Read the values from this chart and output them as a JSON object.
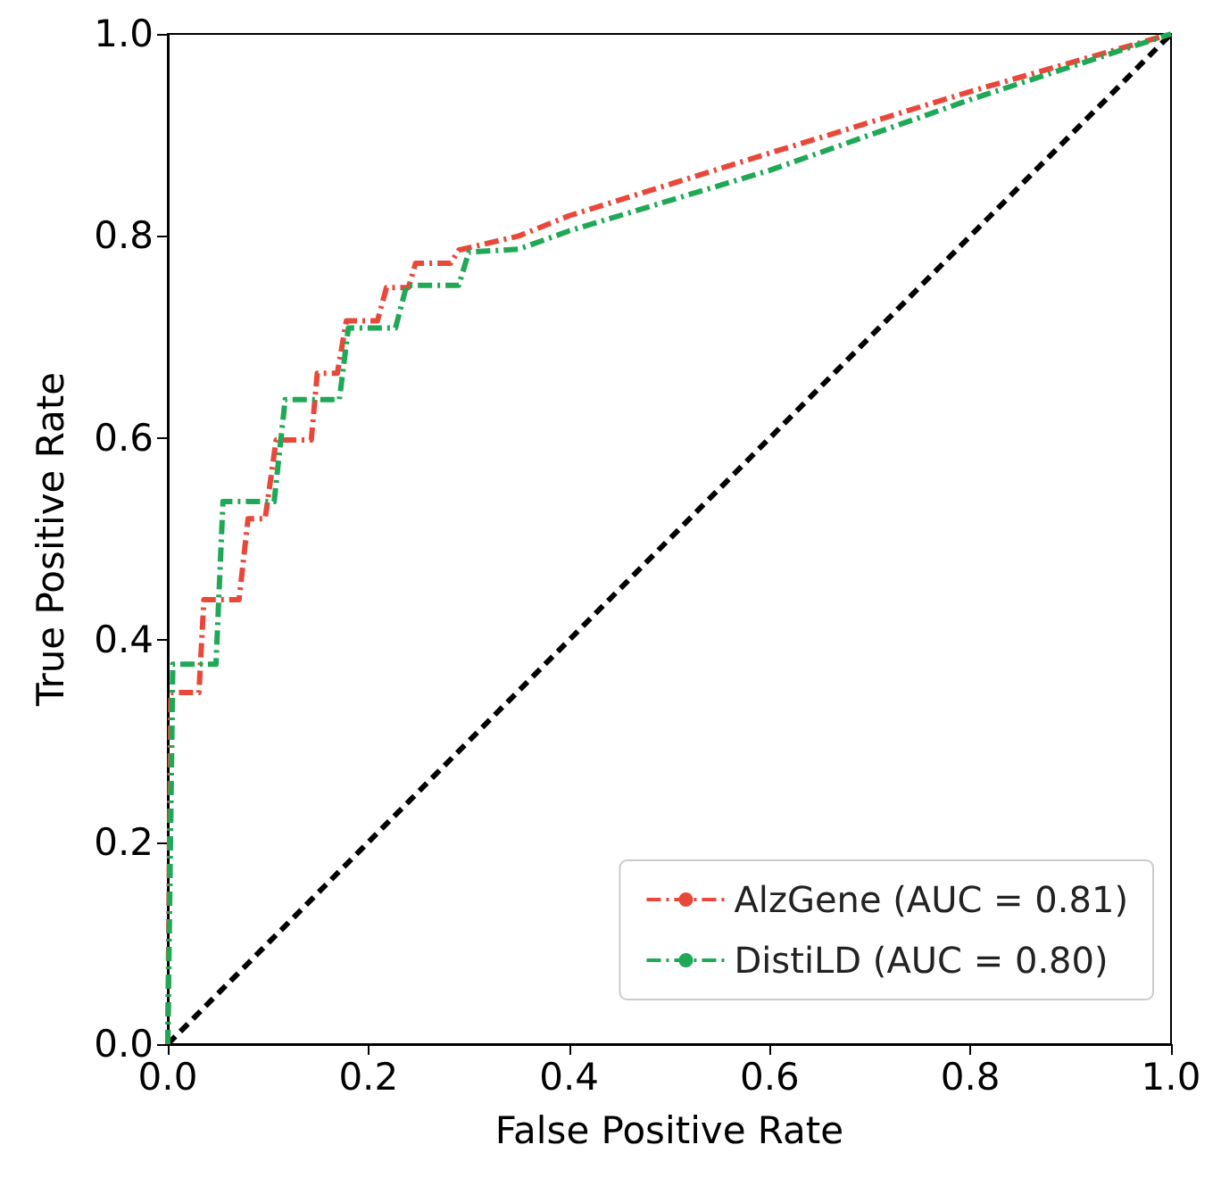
{
  "chart_data": {
    "type": "line",
    "xlabel": "False Positive Rate",
    "ylabel": "True Positive Rate",
    "xlim": [
      0,
      1
    ],
    "ylim": [
      0,
      1
    ],
    "xticks": [
      {
        "value": 0,
        "label": "0.0"
      },
      {
        "value": 0.2,
        "label": "0.2"
      },
      {
        "value": 0.4,
        "label": "0.4"
      },
      {
        "value": 0.6,
        "label": "0.6"
      },
      {
        "value": 0.8,
        "label": "0.8"
      },
      {
        "value": 1,
        "label": "1.0"
      }
    ],
    "yticks": [
      {
        "value": 0,
        "label": "0.0"
      },
      {
        "value": 0.2,
        "label": "0.2"
      },
      {
        "value": 0.4,
        "label": "0.4"
      },
      {
        "value": 0.6,
        "label": "0.6"
      },
      {
        "value": 0.8,
        "label": "0.8"
      },
      {
        "value": 1,
        "label": "1.0"
      }
    ],
    "grid": false,
    "legend": "bottom right",
    "marker": "none",
    "series": [
      {
        "name": "AlzGene (AUC = 0.81)",
        "color": "#e8483a",
        "line_style": "dashdot",
        "x": [
          0,
          0.003,
          0.031,
          0.036,
          0.071,
          0.08,
          0.097,
          0.108,
          0.143,
          0.149,
          0.169,
          0.178,
          0.209,
          0.218,
          0.24,
          0.247,
          0.282,
          0.29,
          0.35,
          0.4,
          0.6,
          0.8,
          1
        ],
        "values": [
          0,
          0.348,
          0.348,
          0.44,
          0.44,
          0.52,
          0.52,
          0.598,
          0.598,
          0.664,
          0.664,
          0.716,
          0.716,
          0.749,
          0.749,
          0.773,
          0.773,
          0.786,
          0.8,
          0.82,
          0.882,
          0.943,
          1
        ]
      },
      {
        "name": "DistiLD (AUC = 0.80)",
        "color": "#1fa855",
        "line_style": "dashdot",
        "x": [
          0,
          0.005,
          0.048,
          0.055,
          0.106,
          0.117,
          0.171,
          0.18,
          0.227,
          0.238,
          0.29,
          0.3,
          0.35,
          0.4,
          0.6,
          0.8,
          1
        ],
        "values": [
          0,
          0.376,
          0.376,
          0.537,
          0.537,
          0.638,
          0.638,
          0.709,
          0.709,
          0.751,
          0.751,
          0.784,
          0.787,
          0.805,
          0.865,
          0.935,
          1
        ]
      },
      {
        "color": "#000000",
        "line_style": "dashed",
        "x": [
          0,
          1
        ],
        "values": [
          0,
          1
        ]
      }
    ]
  }
}
